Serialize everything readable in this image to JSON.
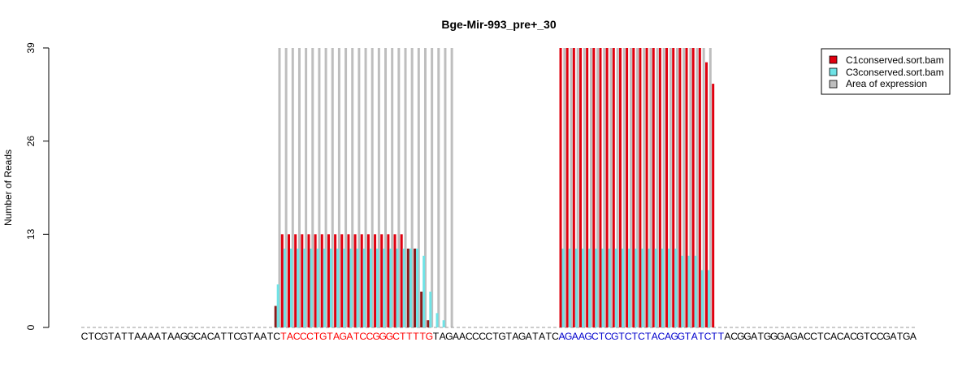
{
  "chart_data": {
    "type": "bar",
    "title": "Bge-Mir-993_pre+_30",
    "ylabel": "Number of Reads",
    "xlabel": "",
    "ylim": [
      0,
      39
    ],
    "yticks": [
      0,
      13,
      26,
      39
    ],
    "sequence": "CTCGTATTAAAATAAGGCACATTCGTAATCTACCCTGTAGATCCGGGCTTTTGTAGAACCCCTGTAGATATCAGAAGCTCGTCTCTACAGGTATCTTACGGATGGGAGACCTCACACGTCCGATGA",
    "colors": {
      "c1": "#E0000F",
      "c3": "#6FE3E6",
      "area": "#BEBEBE",
      "c1_dark": "#8B1A1A",
      "c3_dark": "#7EC8C8",
      "seq_default": "#000000",
      "mature_5p": "#FF0000",
      "mature_3p": "#0000CD"
    },
    "mature_5p": {
      "start": 30,
      "end": 52
    },
    "mature_3p": {
      "start": 72,
      "end": 96
    },
    "expression_regions": [
      {
        "start": 29,
        "end": 55
      },
      {
        "start": 72,
        "end": 94
      }
    ],
    "series": [
      {
        "name": "C1conserved.sort.bam",
        "color": "#E0000F",
        "values": [
          0,
          0,
          0,
          0,
          0,
          0,
          0,
          0,
          0,
          0,
          0,
          0,
          0,
          0,
          0,
          0,
          0,
          0,
          0,
          0,
          0,
          0,
          0,
          0,
          0,
          0,
          0,
          0,
          0,
          3,
          13,
          13,
          13,
          13,
          13,
          13,
          13,
          13,
          13,
          13,
          13,
          13,
          13,
          13,
          13,
          13,
          13,
          13,
          13,
          11,
          11,
          5,
          1,
          0,
          0,
          0,
          0,
          0,
          0,
          0,
          0,
          0,
          0,
          0,
          0,
          0,
          0,
          0,
          0,
          0,
          0,
          0,
          39,
          39,
          39,
          39,
          39,
          39,
          39,
          39,
          39,
          39,
          39,
          39,
          39,
          39,
          39,
          39,
          39,
          39,
          39,
          39,
          39,
          39,
          37,
          34,
          0,
          0,
          0,
          0,
          0,
          0,
          0,
          0,
          0,
          0,
          0,
          0,
          0,
          0,
          0,
          0,
          0,
          0,
          0,
          0,
          0,
          0,
          0,
          0,
          0,
          0,
          0,
          0,
          0,
          0,
          0,
          0
        ]
      },
      {
        "name": "C3conserved.sort.bam",
        "color": "#6FE3E6",
        "values": [
          0,
          0,
          0,
          0,
          0,
          0,
          0,
          0,
          0,
          0,
          0,
          0,
          0,
          0,
          0,
          0,
          0,
          0,
          0,
          0,
          0,
          0,
          0,
          0,
          0,
          0,
          0,
          0,
          0,
          6,
          11,
          11,
          11,
          11,
          11,
          11,
          11,
          11,
          11,
          11,
          11,
          11,
          11,
          11,
          11,
          11,
          11,
          11,
          11,
          11,
          11,
          10,
          5,
          2,
          1,
          0,
          0,
          0,
          0,
          0,
          0,
          0,
          0,
          0,
          0,
          0,
          0,
          0,
          0,
          0,
          0,
          0,
          11,
          11,
          11,
          11,
          11,
          11,
          11,
          11,
          11,
          11,
          11,
          11,
          11,
          11,
          11,
          11,
          11,
          11,
          10,
          10,
          10,
          8,
          8,
          0,
          0,
          0,
          0,
          0,
          0,
          0,
          0,
          0,
          0,
          0,
          0,
          0,
          0,
          0,
          0,
          0,
          0,
          0,
          0,
          0,
          0,
          0,
          0,
          0,
          0,
          0,
          0,
          0,
          0,
          0,
          0,
          0
        ]
      },
      {
        "name": "Area of expression",
        "color": "#BEBEBE"
      }
    ],
    "legend_position": "top-right",
    "grid": false
  }
}
